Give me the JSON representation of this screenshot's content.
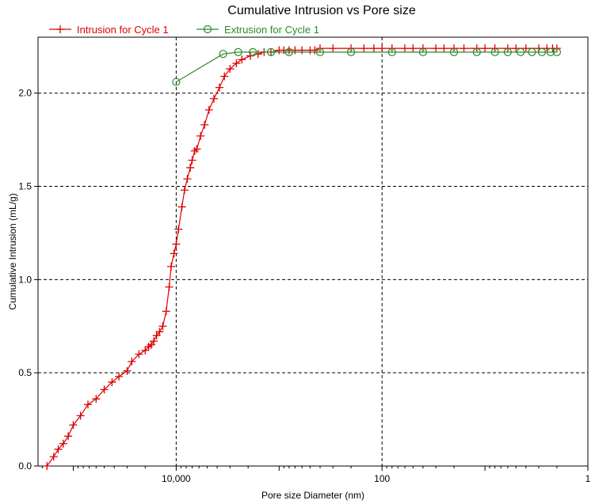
{
  "chart_data": {
    "type": "line",
    "title": "Cumulative Intrusion vs Pore size",
    "xlabel": "Pore size Diameter (nm)",
    "ylabel": "Cumulative Intrusion (mL/g)",
    "x_scale": "log",
    "x_reversed": true,
    "xlim": [
      220000,
      1
    ],
    "ylim": [
      0,
      2.3
    ],
    "x_ticks": [
      10000,
      100,
      1
    ],
    "x_tick_labels": [
      "10,000",
      "100",
      "1"
    ],
    "y_ticks": [
      0,
      0.5,
      1,
      1.5,
      2
    ],
    "y_tick_labels": [
      "0.0",
      "0.5",
      "1.0",
      "1.5",
      "2.0"
    ],
    "grid": true,
    "legend_position": "top-left",
    "series": [
      {
        "name": "Intrusion for Cycle 1",
        "color": "#dd0000",
        "marker": "plus",
        "x": [
          180000,
          155000,
          140000,
          125000,
          112000,
          100000,
          85000,
          72000,
          60000,
          50000,
          42000,
          36000,
          30000,
          27000,
          23000,
          20000,
          18500,
          17500,
          16500,
          15500,
          14500,
          13500,
          12500,
          11700,
          11200,
          10500,
          10000,
          9500,
          8800,
          8300,
          7800,
          7300,
          7000,
          6600,
          6300,
          5800,
          5300,
          4800,
          4300,
          3800,
          3400,
          3000,
          2600,
          2300,
          1900,
          1600,
          1400,
          1200,
          1000,
          900,
          800,
          700,
          600,
          500,
          450,
          400,
          300,
          200,
          150,
          120,
          100,
          80,
          60,
          50,
          40,
          30,
          25,
          20,
          16,
          12,
          10,
          8,
          6,
          5,
          4,
          3,
          2.5,
          2.2,
          2.0
        ],
        "y": [
          0.0,
          0.05,
          0.09,
          0.12,
          0.16,
          0.22,
          0.27,
          0.33,
          0.36,
          0.41,
          0.45,
          0.48,
          0.51,
          0.56,
          0.6,
          0.62,
          0.64,
          0.65,
          0.67,
          0.7,
          0.72,
          0.75,
          0.83,
          0.96,
          1.07,
          1.14,
          1.19,
          1.27,
          1.39,
          1.48,
          1.54,
          1.6,
          1.64,
          1.69,
          1.7,
          1.77,
          1.83,
          1.91,
          1.97,
          2.03,
          2.09,
          2.13,
          2.16,
          2.18,
          2.2,
          2.21,
          2.22,
          2.22,
          2.23,
          2.23,
          2.23,
          2.23,
          2.23,
          2.23,
          2.23,
          2.24,
          2.24,
          2.24,
          2.24,
          2.24,
          2.24,
          2.24,
          2.24,
          2.24,
          2.24,
          2.24,
          2.24,
          2.24,
          2.24,
          2.24,
          2.24,
          2.24,
          2.24,
          2.24,
          2.24,
          2.24,
          2.24,
          2.24,
          2.24
        ]
      },
      {
        "name": "Extrusion for Cycle 1",
        "color": "#2a8a2a",
        "marker": "circle",
        "x": [
          10000,
          3500,
          2500,
          1800,
          1200,
          800,
          400,
          200,
          80,
          40,
          20,
          12,
          8,
          6,
          4.5,
          3.5,
          2.8,
          2.3,
          2.0
        ],
        "y": [
          2.06,
          2.21,
          2.22,
          2.22,
          2.22,
          2.22,
          2.22,
          2.22,
          2.22,
          2.22,
          2.22,
          2.22,
          2.22,
          2.22,
          2.22,
          2.22,
          2.22,
          2.22,
          2.22
        ]
      }
    ]
  }
}
